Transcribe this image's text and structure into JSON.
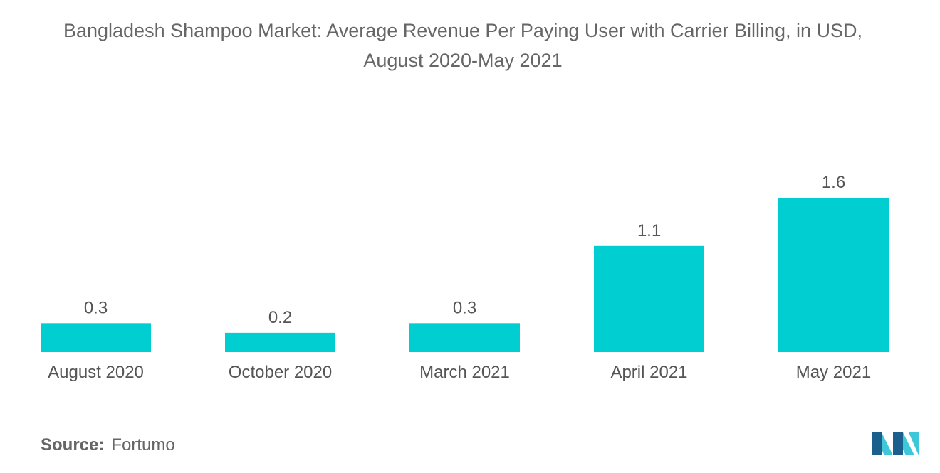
{
  "chart_data": {
    "type": "bar",
    "title_line1": "Bangladesh Shampoo Market: Average Revenue Per Paying User with Carrier Billing, in USD,",
    "title_line2": "August 2020-May 2021",
    "categories": [
      "August 2020",
      "October 2020",
      "March 2021",
      "April 2021",
      "May 2021"
    ],
    "values": [
      0.3,
      0.2,
      0.3,
      1.1,
      1.6
    ],
    "value_labels": [
      "0.3",
      "0.2",
      "0.3",
      "1.1",
      "1.6"
    ],
    "xlabel": "",
    "ylabel": "",
    "ylim": [
      0,
      1.6
    ],
    "grid": false,
    "legend": "none",
    "bar_color": "#00CED1"
  },
  "source": {
    "label": "Source:",
    "value": "Fortumo"
  },
  "logo": {
    "icon": "mordor-intelligence-logo-icon",
    "colors": [
      "#1B5F8C",
      "#3EC6D9"
    ]
  }
}
